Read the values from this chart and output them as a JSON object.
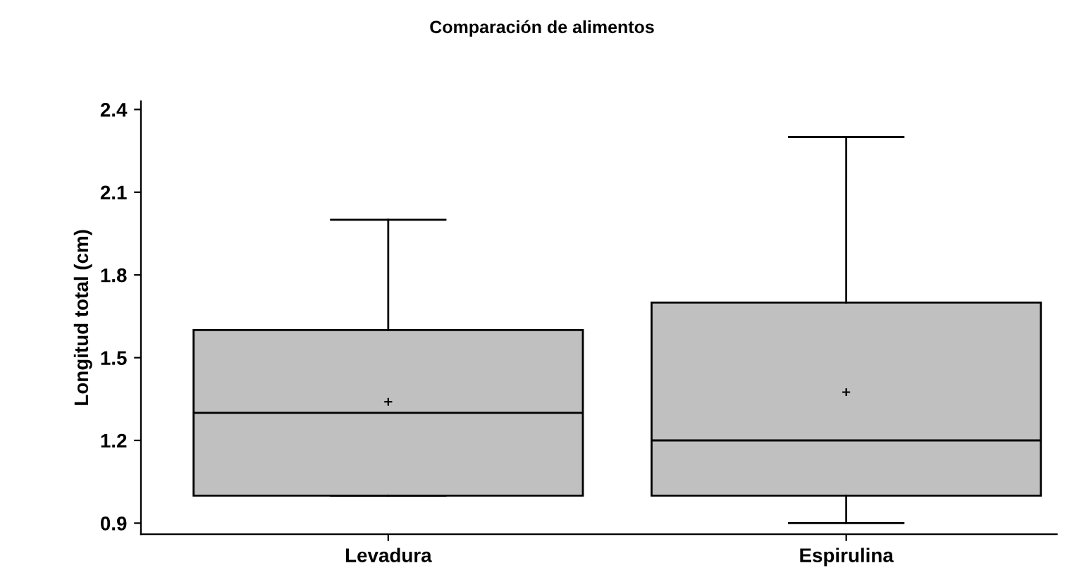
{
  "chart_data": {
    "type": "box",
    "title": "Comparación de alimentos",
    "ylabel": "Longitud total (cm)",
    "categories": [
      "Levadura",
      "Espirulina"
    ],
    "boxes": [
      {
        "low": 1.0,
        "q1": 1.0,
        "median": 1.3,
        "q3": 1.6,
        "high": 2.0,
        "mean": 1.34
      },
      {
        "low": 0.9,
        "q1": 1.0,
        "median": 1.2,
        "q3": 1.7,
        "high": 2.3,
        "mean": 1.375
      }
    ],
    "color": "#c0c0c0",
    "ylim": [
      0.86,
      2.43
    ],
    "yticks": [
      0.9,
      1.2,
      1.5,
      1.8,
      2.1,
      2.4
    ],
    "grid": false,
    "legend": false
  }
}
